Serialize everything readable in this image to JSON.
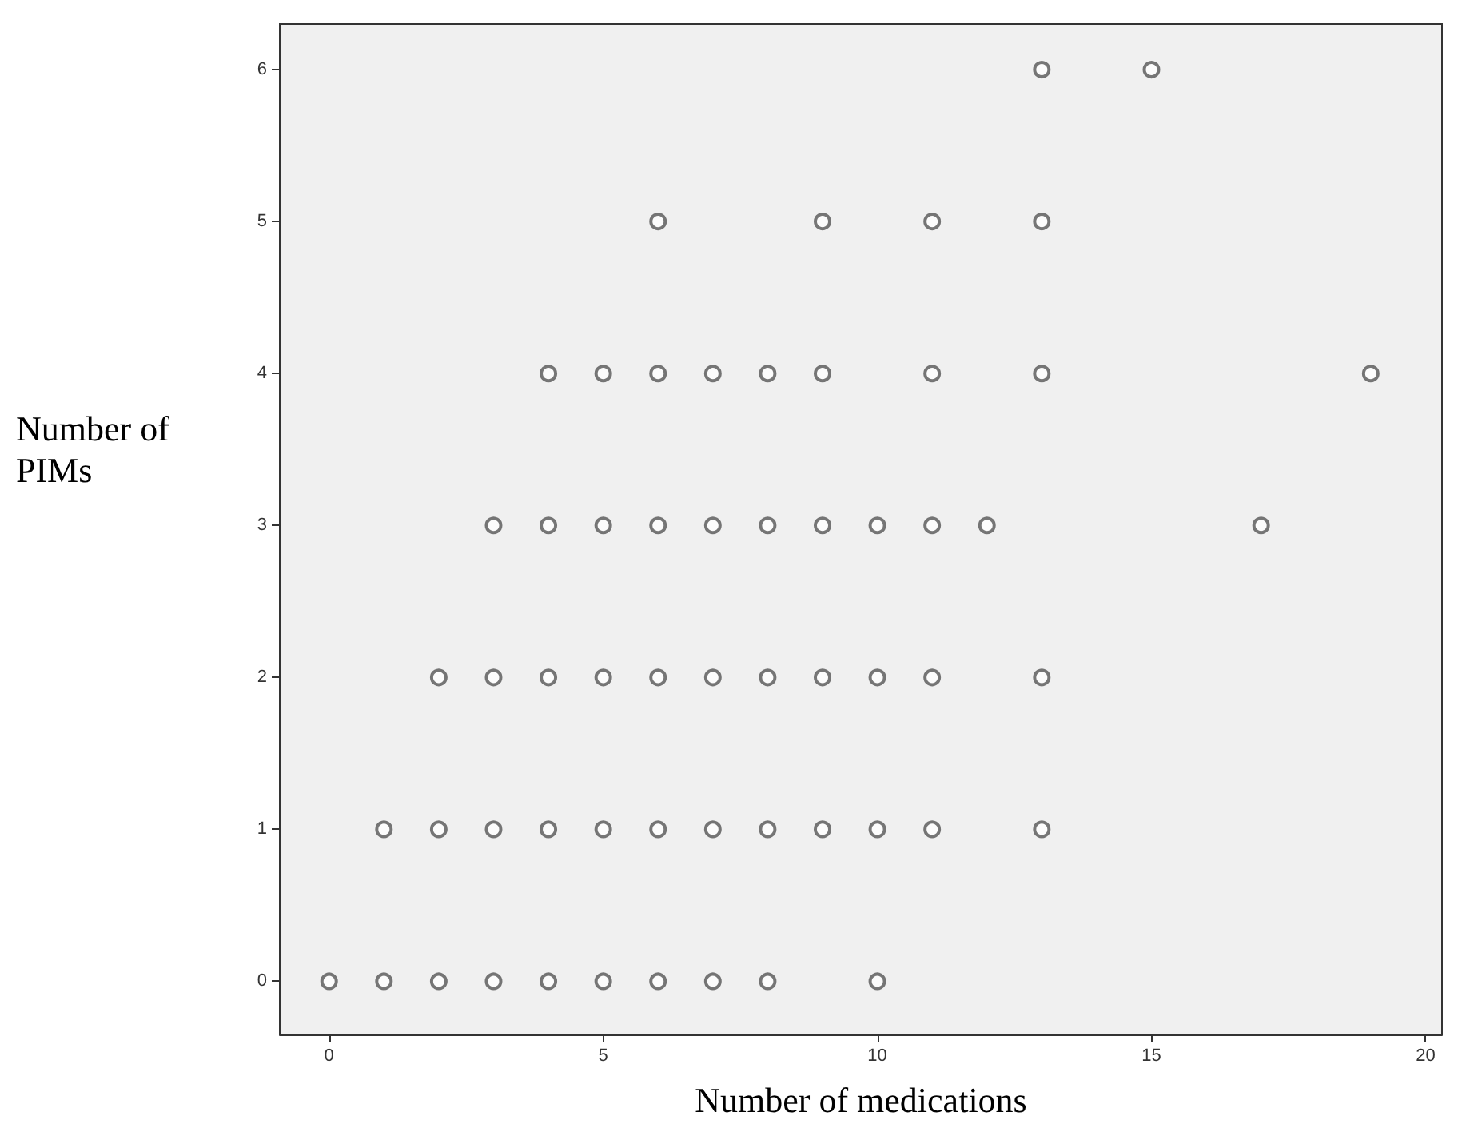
{
  "chart_data": {
    "type": "scatter",
    "xlabel": "Number of medications",
    "ylabel": "Number of PIMs",
    "x": [
      13,
      15,
      6,
      9,
      11,
      13,
      4,
      5,
      6,
      7,
      8,
      9,
      11,
      13,
      19,
      3,
      4,
      5,
      6,
      7,
      8,
      9,
      10,
      11,
      12,
      17,
      2,
      3,
      4,
      5,
      6,
      7,
      8,
      9,
      10,
      11,
      13,
      1,
      2,
      3,
      4,
      5,
      6,
      7,
      8,
      9,
      10,
      11,
      13,
      0,
      1,
      2,
      3,
      4,
      5,
      6,
      7,
      8,
      10
    ],
    "values": [
      6,
      6,
      5,
      5,
      5,
      5,
      4,
      4,
      4,
      4,
      4,
      4,
      4,
      4,
      4,
      3,
      3,
      3,
      3,
      3,
      3,
      3,
      3,
      3,
      3,
      3,
      2,
      2,
      2,
      2,
      2,
      2,
      2,
      2,
      2,
      2,
      2,
      1,
      1,
      1,
      1,
      1,
      1,
      1,
      1,
      1,
      1,
      1,
      1,
      0,
      0,
      0,
      0,
      0,
      0,
      0,
      0,
      0,
      0
    ],
    "color": "#555555",
    "marker": "circle",
    "xlim": [
      -0.9,
      20.3
    ],
    "xticks": [
      0,
      5,
      10,
      15,
      20
    ],
    "ylim": [
      -0.35,
      6.3
    ],
    "yticks": [
      0,
      1,
      2,
      3,
      4,
      5,
      6
    ],
    "grid": false
  }
}
